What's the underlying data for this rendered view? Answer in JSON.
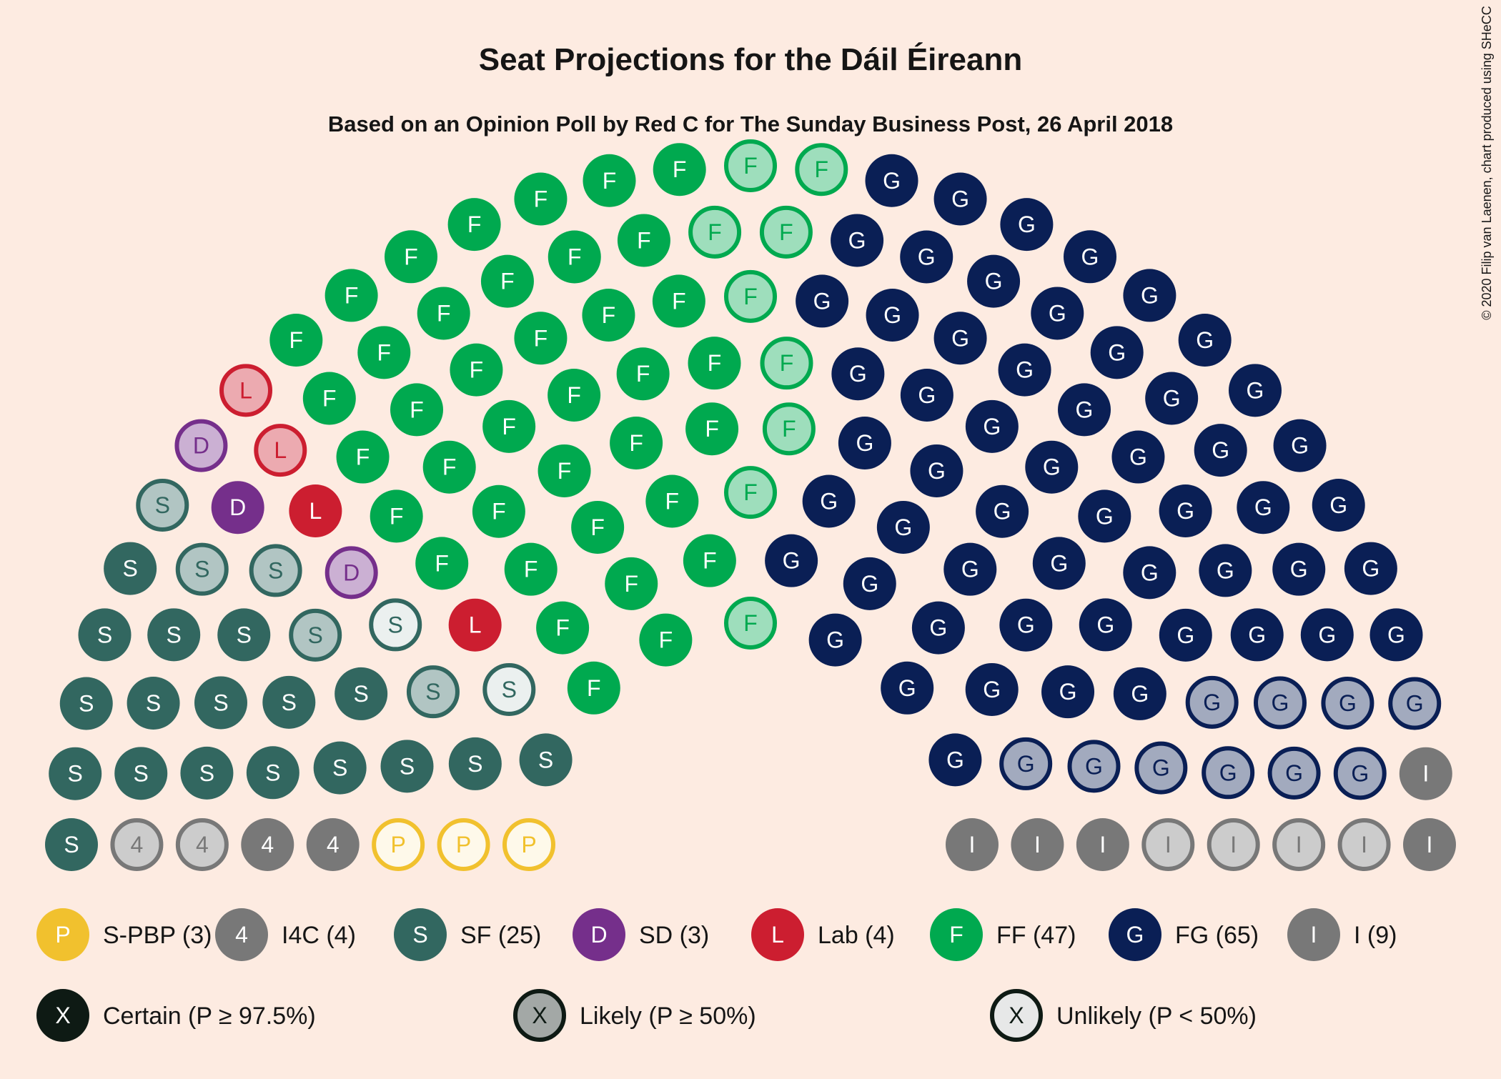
{
  "chart_data": {
    "type": "parliament",
    "title": "Seat Projections for the Dáil Éireann",
    "subtitle": "Based on an Opinion Poll by Red C for The Sunday Business Post, 26 April 2018",
    "credit": "© 2020 Filip van Laenen, chart produced using SHeCC",
    "total_seats": 160,
    "parties": [
      {
        "key": "spbp",
        "letter": "P",
        "label": "S-PBP (3)",
        "color": "#F1C12E",
        "seats": 3,
        "certain": 0,
        "likely": 0,
        "unlikely": 3
      },
      {
        "key": "i4c",
        "letter": "4",
        "label": "I4C (4)",
        "color": "#787878",
        "seats": 4,
        "certain": 2,
        "likely": 2,
        "unlikely": 0
      },
      {
        "key": "sf",
        "letter": "S",
        "label": "SF (25)",
        "color": "#326760",
        "seats": 25,
        "certain": 18,
        "likely": 5,
        "unlikely": 2
      },
      {
        "key": "sd",
        "letter": "D",
        "label": "SD (3)",
        "color": "#752F8B",
        "seats": 3,
        "certain": 1,
        "likely": 2,
        "unlikely": 0
      },
      {
        "key": "lab",
        "letter": "L",
        "label": "Lab (4)",
        "color": "#CC1E30",
        "seats": 4,
        "certain": 2,
        "likely": 2,
        "unlikely": 0
      },
      {
        "key": "ff",
        "letter": "F",
        "label": "FF (47)",
        "color": "#00A94F",
        "seats": 47,
        "certain": 38,
        "likely": 9,
        "unlikely": 0
      },
      {
        "key": "fg",
        "letter": "G",
        "label": "FG (65)",
        "color": "#0A1F55",
        "seats": 65,
        "certain": 55,
        "likely": 10,
        "unlikely": 0
      },
      {
        "key": "ind",
        "letter": "I",
        "label": "I (9)",
        "color": "#787878",
        "seats": 9,
        "certain": 5,
        "likely": 4,
        "unlikely": 0
      }
    ],
    "certainty_legend": [
      {
        "key": "certain",
        "letter": "X",
        "label": "Certain (P ≥ 97.5%)"
      },
      {
        "key": "likely",
        "letter": "X",
        "label": "Likely (P ≥ 50%)"
      },
      {
        "key": "unlikely",
        "letter": "X",
        "label": "Unlikely (P < 50%)"
      }
    ],
    "certainty_color": "#0E1A14"
  }
}
